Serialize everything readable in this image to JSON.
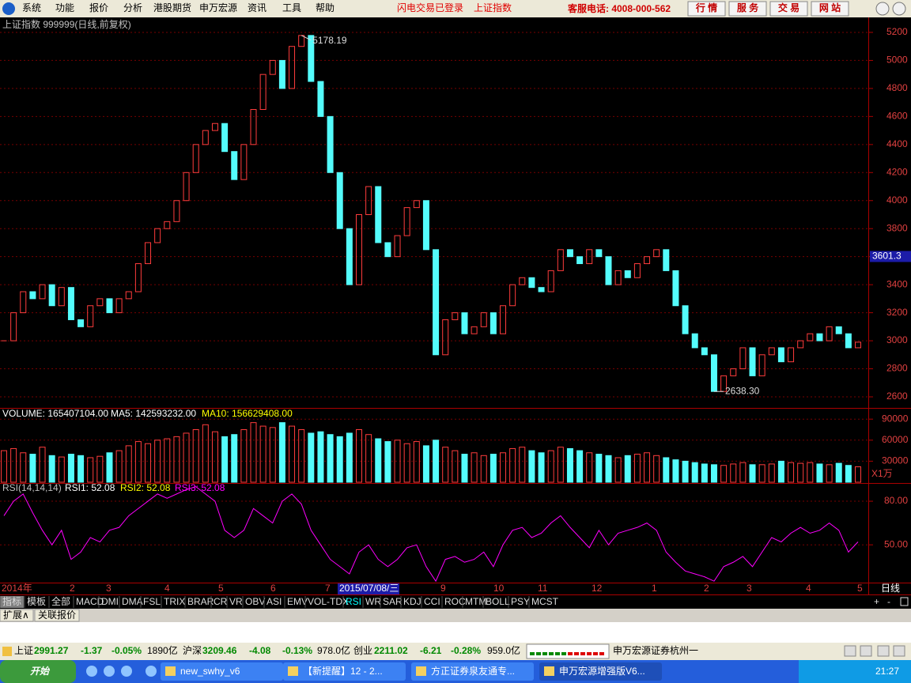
{
  "menu": {
    "items": [
      "系统",
      "功能",
      "报价",
      "分析",
      "港股期货",
      "申万宏源",
      "资讯",
      "工具",
      "帮助"
    ],
    "notices": [
      "闪电交易已登录",
      "上证指数"
    ],
    "hotline": "客服电话: 4008-000-562",
    "buttons": [
      "行 情",
      "服 务",
      "交 易",
      "网 站"
    ]
  },
  "price_panel": {
    "title": "上证指数 999999(日线,前复权)",
    "ylim": [
      2521,
      5307
    ],
    "yticks": [
      5200,
      5000,
      4800,
      4600,
      4400,
      4200,
      4000,
      3800,
      3600,
      3400,
      3200,
      3000,
      2800,
      2600
    ],
    "closes": [
      3000,
      3200,
      3350,
      3300,
      3400,
      3250,
      3380,
      3150,
      3100,
      3250,
      3300,
      3200,
      3300,
      3350,
      3550,
      3700,
      3800,
      3850,
      4000,
      4200,
      4400,
      4500,
      4550,
      4350,
      4150,
      4400,
      4650,
      4900,
      5000,
      4800,
      5100,
      5178.19,
      4850,
      4600,
      4200,
      3800,
      3400,
      3900,
      4100,
      3700,
      3600,
      3750,
      3950,
      4000,
      3650,
      2900,
      3150,
      3200,
      3050,
      3100,
      3200,
      3050,
      3250,
      3400,
      3450,
      3380,
      3350,
      3500,
      3650,
      3600,
      3550,
      3650,
      3600,
      3400,
      3500,
      3450,
      3550,
      3600,
      3650,
      3500,
      3250,
      3050,
      2950,
      2900,
      2638.3,
      2750,
      2800,
      2950,
      2750,
      2900,
      2950,
      2850,
      2950,
      3000,
      3050,
      3000,
      3100,
      3050,
      2950,
      2990
    ],
    "high": 5178.19,
    "low": {
      "value": 2638.3,
      "label": "2638.30"
    },
    "cursor": 3601.3
  },
  "volume_panel": {
    "volume": "VOLUME: 165407104.00",
    "ma5": "MA5: 142593232.00",
    "ma10": "MA10: 156629408.00",
    "unit": "X1万",
    "ylim": [
      0,
      97000
    ],
    "yticks": [
      30000,
      60000,
      90000
    ],
    "values": [
      45000,
      48000,
      42000,
      40000,
      50000,
      38000,
      36000,
      40000,
      38000,
      35000,
      37000,
      42000,
      45000,
      52000,
      58000,
      55000,
      60000,
      62000,
      65000,
      70000,
      75000,
      82000,
      72000,
      65000,
      68000,
      75000,
      85000,
      80000,
      78000,
      85000,
      80000,
      75000,
      70000,
      72000,
      68000,
      65000,
      70000,
      75000,
      68000,
      62000,
      58000,
      60000,
      55000,
      58000,
      52000,
      60000,
      50000,
      45000,
      40000,
      42000,
      38000,
      40000,
      42000,
      48000,
      50000,
      45000,
      42000,
      45000,
      50000,
      48000,
      45000,
      42000,
      40000,
      38000,
      35000,
      38000,
      40000,
      42000,
      38000,
      35000,
      32000,
      30000,
      28000,
      26000,
      25000,
      24000,
      26000,
      28000,
      25000,
      25000,
      26000,
      30000,
      28000,
      27000,
      28000,
      26000,
      25000,
      27000,
      24000,
      22000
    ]
  },
  "rsi_panel": {
    "name": "RSI(14,14,14)",
    "rsi1": "RSI1: 52.08",
    "rsi2": "RSI2: 52.08",
    "rsi3": "RSI3: 52.08",
    "ylim": [
      24,
      92
    ],
    "yticks": [
      {
        "value": 80,
        "label": "80.00"
      },
      {
        "value": 50,
        "label": "50.00"
      }
    ],
    "values": [
      70,
      80,
      85,
      72,
      60,
      50,
      60,
      40,
      45,
      55,
      52,
      60,
      62,
      70,
      75,
      80,
      85,
      82,
      85,
      88,
      90,
      85,
      80,
      60,
      55,
      60,
      75,
      70,
      65,
      80,
      85,
      78,
      60,
      50,
      40,
      35,
      30,
      45,
      50,
      40,
      35,
      40,
      48,
      50,
      35,
      25,
      40,
      42,
      38,
      40,
      45,
      35,
      50,
      60,
      62,
      55,
      58,
      65,
      70,
      62,
      55,
      48,
      60,
      50,
      58,
      60,
      62,
      65,
      60,
      45,
      38,
      32,
      30,
      28,
      25,
      35,
      38,
      42,
      35,
      45,
      55,
      52,
      58,
      62,
      58,
      60,
      65,
      60,
      45,
      52
    ]
  },
  "date_axis": {
    "labels": [
      "2014年",
      "2",
      "3",
      "4",
      "5",
      "6",
      "7",
      "9",
      "10",
      "11",
      "12",
      "1",
      "2",
      "3",
      "4",
      "5"
    ],
    "cursor_date": "2015/07/08/三",
    "period": "日线"
  },
  "tabs": {
    "items": [
      "指标",
      "模板",
      "全部",
      "MACD",
      "DMI",
      "DMA",
      "FSL",
      "TRIX",
      "BRAR",
      "CR",
      "VR",
      "OBV",
      "ASI",
      "EMV",
      "VOL-TDX",
      "RSI",
      "WR",
      "SAR",
      "KDJ",
      "CCI",
      "ROC",
      "MTM",
      "BOLL",
      "PSY",
      "MCST"
    ],
    "controls": [
      "+",
      "-"
    ]
  },
  "extra_tabs": [
    "扩展∧",
    "关联报价"
  ],
  "status_bar": {
    "indices": [
      {
        "name": "上证",
        "price": "2991.27",
        "change": "-1.37",
        "pct": "-0.05%",
        "amount": "1890亿"
      },
      {
        "name": "沪深",
        "price": "3209.46",
        "change": "-4.08",
        "pct": "-0.13%",
        "amount": "978.0亿"
      },
      {
        "name": "创业",
        "price": "2211.02",
        "change": "-6.21",
        "pct": "-0.28%",
        "amount": "959.0亿"
      }
    ],
    "broker": "申万宏源证券杭州一"
  },
  "taskbar": {
    "start": "开始",
    "tasks": [
      "new_swhy_v6",
      "【新提醒】12 - 2...",
      "方正证券泉友通专...",
      "申万宏源增强版V6..."
    ],
    "clock": "21:27"
  }
}
